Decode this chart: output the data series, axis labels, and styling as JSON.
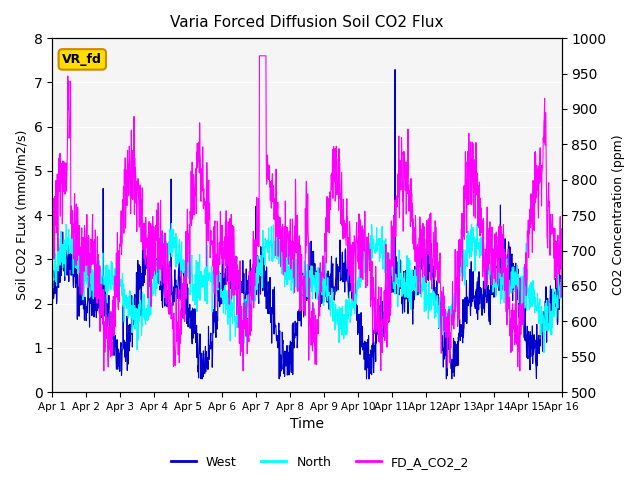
{
  "title": "Varia Forced Diffusion Soil CO2 Flux",
  "xlabel": "Time",
  "ylabel_left": "Soil CO2 FLux (mmol/m2/s)",
  "ylabel_right": "CO2 Concentration (ppm)",
  "ylim_left": [
    0.0,
    8.0
  ],
  "ylim_right": [
    500,
    1000
  ],
  "xtick_labels": [
    "Apr 1",
    "Apr 2",
    "Apr 3",
    "Apr 4",
    "Apr 5",
    "Apr 6",
    "Apr 7",
    "Apr 8",
    "Apr 9",
    "Apr 10",
    "Apr 11",
    "Apr 12",
    "Apr 13",
    "Apr 14",
    "Apr 15",
    "Apr 16"
  ],
  "yticks_left": [
    0.0,
    1.0,
    2.0,
    3.0,
    4.0,
    5.0,
    6.0,
    7.0,
    8.0
  ],
  "yticks_right": [
    500,
    550,
    600,
    650,
    700,
    750,
    800,
    850,
    900,
    950,
    1000
  ],
  "legend_entries": [
    "West",
    "North",
    "FD_A_CO2_2"
  ],
  "line_colors": [
    "#0000cd",
    "#00ffff",
    "#ff00ff"
  ],
  "annotation_text": "VR_fd",
  "annotation_bg": "#ffdd00",
  "annotation_border": "#cc8800",
  "bg_color": "#e8e8e8",
  "plot_bg": "#f5f5f5",
  "seed": 42
}
